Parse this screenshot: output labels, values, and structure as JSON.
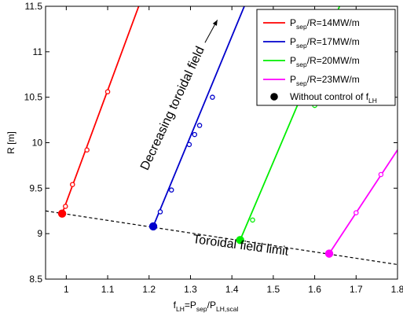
{
  "chart_data": {
    "type": "line",
    "xlabel": {
      "main": "f",
      "main_sub": "LH",
      "mid": "=P",
      "mid_sub": "sep",
      "slash": "/P",
      "end_sub": "LH,scal"
    },
    "ylabel": "R [m]",
    "xlim": [
      0.95,
      1.8
    ],
    "ylim": [
      8.5,
      11.5
    ],
    "xticks": [
      1,
      1.1,
      1.2,
      1.3,
      1.4,
      1.5,
      1.6,
      1.7,
      1.8
    ],
    "yticks": [
      8.5,
      9,
      9.5,
      10,
      10.5,
      11,
      11.5
    ],
    "grid": false,
    "legend_position": "top-right",
    "series": [
      {
        "name": "P_sep/R=14MW/m",
        "label_main": "P",
        "label_sub": "sep",
        "label_rest": "/R=14MW/m",
        "color": "#ff0000",
        "line": [
          [
            0.99,
            9.22
          ],
          [
            1.175,
            11.5
          ]
        ],
        "open_markers": [
          [
            0.998,
            9.3
          ],
          [
            1.015,
            9.54
          ],
          [
            1.05,
            9.92
          ],
          [
            1.1,
            10.56
          ]
        ],
        "filled_marker": [
          0.99,
          9.22
        ]
      },
      {
        "name": "P_sep/R=17MW/m",
        "label_main": "P",
        "label_sub": "sep",
        "label_rest": "/R=17MW/m",
        "color": "#0000cc",
        "line": [
          [
            1.21,
            9.08
          ],
          [
            1.43,
            11.5
          ]
        ],
        "open_markers": [
          [
            1.227,
            9.24
          ],
          [
            1.254,
            9.48
          ],
          [
            1.297,
            9.98
          ],
          [
            1.31,
            10.09
          ],
          [
            1.322,
            10.19
          ],
          [
            1.353,
            10.5
          ]
        ],
        "filled_marker": [
          1.21,
          9.08
        ]
      },
      {
        "name": "P_sep/R=20MW/m",
        "label_main": "P",
        "label_sub": "sep",
        "label_rest": "/R=20MW/m",
        "color": "#00ee00",
        "line": [
          [
            1.42,
            8.93
          ],
          [
            1.66,
            11.5
          ]
        ],
        "open_markers": [
          [
            1.45,
            9.15
          ],
          [
            1.6,
            10.41
          ]
        ],
        "filled_marker": [
          1.42,
          8.93
        ]
      },
      {
        "name": "P_sep/R=23MW/m",
        "label_main": "P",
        "label_sub": "sep",
        "label_rest": "/R=23MW/m",
        "color": "#ff00ff",
        "line": [
          [
            1.635,
            8.78
          ],
          [
            1.8,
            9.92
          ]
        ],
        "open_markers": [
          [
            1.7,
            9.23
          ],
          [
            1.76,
            9.65
          ]
        ],
        "filled_marker": [
          1.635,
          8.78
        ]
      }
    ],
    "legend_marker_entry": {
      "label_main": "Without control of f",
      "label_sub": "LH",
      "color": "#000000"
    },
    "limit_line": {
      "points": [
        [
          0.95,
          9.25
        ],
        [
          1.8,
          8.66
        ]
      ],
      "style": "dashed",
      "color": "#000000"
    },
    "annotations": [
      {
        "text": "Toroidal field limit",
        "x": 1.42,
        "y": 8.83,
        "rotation_deg": 7.5
      },
      {
        "text": "Decreasing toroidal field",
        "x": 1.265,
        "y": 10.36,
        "rotation_deg": -65
      }
    ],
    "arrow": {
      "from": [
        1.335,
        11.1
      ],
      "to": [
        1.365,
        11.35
      ]
    }
  }
}
